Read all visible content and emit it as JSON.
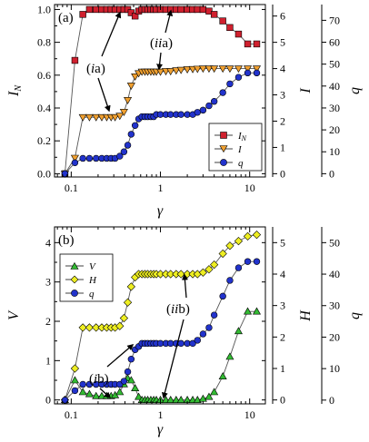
{
  "chart_data": [
    {
      "panel_label": "(a)",
      "type": "line",
      "x_scale": "log",
      "xlim": [
        0.065,
        15
      ],
      "xlabel": "γ",
      "xticks": [
        0.1,
        1,
        10
      ],
      "xtick_labels": [
        "0.1",
        "1",
        "10"
      ],
      "axes": [
        {
          "id": "left",
          "label": "I_N",
          "label_main": "I",
          "label_sub": "N",
          "ylim": [
            -0.02,
            1.03
          ],
          "ticks": [
            0,
            0.2,
            0.4,
            0.6,
            0.8,
            1.0
          ],
          "tick_labels": [
            "0.0",
            "0.2",
            "0.4",
            "0.6",
            "0.8",
            "1.0"
          ]
        },
        {
          "id": "right1",
          "label": "I",
          "ylim": [
            -0.125,
            6.438
          ],
          "ticks": [
            0,
            1,
            2,
            3,
            4,
            5,
            6
          ],
          "tick_labels": [
            "0",
            "1",
            "2",
            "3",
            "4",
            "5",
            "6"
          ]
        },
        {
          "id": "right2",
          "label": "q",
          "ylim": [
            -1.5,
            77.2
          ],
          "ticks": [
            0,
            10,
            20,
            30,
            40,
            50,
            60,
            70
          ],
          "tick_labels": [
            "0",
            "10",
            "20",
            "30",
            "40",
            "50",
            "60",
            "70"
          ]
        }
      ],
      "legend": {
        "position": "lower-right"
      },
      "series": [
        {
          "name": "I_N",
          "name_main": "I",
          "name_sub": "N",
          "axis": "left",
          "marker": "square",
          "color": "#d0202e",
          "x": [
            0.085,
            0.11,
            0.135,
            0.16,
            0.19,
            0.22,
            0.25,
            0.28,
            0.31,
            0.35,
            0.39,
            0.43,
            0.47,
            0.52,
            0.57,
            0.62,
            0.67,
            0.72,
            0.78,
            0.84,
            0.9,
            1.0,
            1.15,
            1.3,
            1.5,
            1.7,
            2.0,
            2.3,
            2.6,
            3.0,
            3.5,
            4.0,
            5.0,
            6.0,
            7.5,
            9.5,
            12.0
          ],
          "y": [
            0.0,
            0.69,
            0.97,
            1.0,
            1.0,
            1.0,
            1.0,
            1.0,
            1.0,
            1.0,
            1.0,
            1.0,
            0.98,
            0.96,
            0.99,
            1.0,
            1.0,
            1.0,
            1.0,
            1.0,
            1.0,
            1.0,
            1.0,
            1.0,
            1.0,
            1.0,
            1.0,
            1.0,
            1.0,
            1.0,
            0.99,
            0.97,
            0.93,
            0.89,
            0.85,
            0.79,
            0.79
          ]
        },
        {
          "name": "I",
          "axis": "right1",
          "marker": "triangle-down",
          "color": "#f0a030",
          "x": [
            0.085,
            0.11,
            0.135,
            0.16,
            0.19,
            0.22,
            0.25,
            0.28,
            0.31,
            0.35,
            0.39,
            0.43,
            0.47,
            0.52,
            0.57,
            0.62,
            0.67,
            0.72,
            0.78,
            0.84,
            0.9,
            1.0,
            1.15,
            1.3,
            1.5,
            1.7,
            2.0,
            2.3,
            2.6,
            3.0,
            3.5,
            4.0,
            5.0,
            6.0,
            7.5,
            9.5,
            12.0
          ],
          "y": [
            0.0,
            0.6,
            2.15,
            2.15,
            2.15,
            2.15,
            2.15,
            2.15,
            2.15,
            2.2,
            2.35,
            2.8,
            3.35,
            3.7,
            3.82,
            3.88,
            3.88,
            3.88,
            3.88,
            3.88,
            3.88,
            3.88,
            3.9,
            3.9,
            3.93,
            3.95,
            3.97,
            3.98,
            3.99,
            4.0,
            4.0,
            4.0,
            4.0,
            4.0,
            4.0,
            4.0,
            4.0
          ]
        },
        {
          "name": "q",
          "axis": "right2",
          "marker": "circle",
          "color": "#2233cc",
          "x": [
            0.085,
            0.11,
            0.135,
            0.16,
            0.19,
            0.22,
            0.25,
            0.28,
            0.31,
            0.35,
            0.39,
            0.43,
            0.47,
            0.52,
            0.57,
            0.62,
            0.67,
            0.72,
            0.78,
            0.84,
            0.9,
            1.0,
            1.15,
            1.3,
            1.5,
            1.7,
            2.0,
            2.3,
            2.6,
            3.0,
            3.5,
            4.0,
            5.0,
            6.0,
            7.5,
            9.5,
            12.0
          ],
          "y": [
            0,
            5,
            7,
            7,
            7,
            7,
            7,
            7,
            7,
            8,
            10,
            13,
            18,
            22,
            25,
            26,
            26,
            26,
            26,
            26,
            27,
            27,
            27,
            27,
            27,
            27,
            27,
            27,
            28,
            29,
            31,
            33,
            37,
            41,
            44,
            46,
            46
          ]
        }
      ],
      "annotations": [
        {
          "text": "(ia)",
          "italic": "i",
          "rest": "a"
        },
        {
          "text": "(iia)",
          "italic": "ii",
          "rest": "a"
        }
      ]
    },
    {
      "panel_label": "(b)",
      "type": "line",
      "x_scale": "log",
      "xlim": [
        0.065,
        15
      ],
      "xlabel": "γ",
      "xticks": [
        0.1,
        1,
        10
      ],
      "xtick_labels": [
        "0.1",
        "1",
        "10"
      ],
      "axes": [
        {
          "id": "left",
          "label": "V",
          "ylim": [
            -0.1,
            4.4
          ],
          "ticks": [
            0,
            1,
            2,
            3,
            4
          ],
          "tick_labels": [
            "0",
            "1",
            "2",
            "3",
            "4"
          ]
        },
        {
          "id": "right1",
          "label": "H",
          "ylim": [
            -0.125,
            5.5
          ],
          "ticks": [
            0,
            1,
            2,
            3,
            4,
            5
          ],
          "tick_labels": [
            "0",
            "1",
            "2",
            "3",
            "4",
            "5"
          ]
        },
        {
          "id": "right2",
          "label": "q",
          "ylim": [
            -1.2,
            55
          ],
          "ticks": [
            0,
            10,
            20,
            30,
            40,
            50
          ],
          "tick_labels": [
            "0",
            "10",
            "20",
            "30",
            "40",
            "50"
          ]
        }
      ],
      "legend": {
        "position": "top-left"
      },
      "series": [
        {
          "name": "V",
          "axis": "left",
          "marker": "triangle-up",
          "color": "#33bb33",
          "x": [
            0.085,
            0.11,
            0.135,
            0.16,
            0.19,
            0.22,
            0.25,
            0.28,
            0.31,
            0.35,
            0.39,
            0.43,
            0.47,
            0.52,
            0.57,
            0.62,
            0.67,
            0.72,
            0.78,
            0.84,
            0.9,
            1.0,
            1.15,
            1.3,
            1.5,
            1.7,
            2.0,
            2.3,
            2.6,
            3.0,
            3.5,
            4.0,
            5.0,
            6.0,
            7.5,
            9.5,
            12.0
          ],
          "y": [
            0.0,
            0.5,
            0.2,
            0.15,
            0.1,
            0.1,
            0.1,
            0.1,
            0.12,
            0.2,
            0.4,
            0.55,
            0.5,
            0.3,
            0.08,
            0.0,
            0.0,
            0.0,
            0.0,
            0.0,
            0.0,
            0.0,
            0.0,
            0.0,
            0.0,
            0.0,
            0.0,
            0.0,
            0.0,
            0.03,
            0.08,
            0.2,
            0.6,
            1.1,
            1.75,
            2.25,
            2.25
          ]
        },
        {
          "name": "H",
          "axis": "right1",
          "marker": "diamond",
          "color": "#eeee22",
          "x": [
            0.085,
            0.11,
            0.135,
            0.16,
            0.19,
            0.22,
            0.25,
            0.28,
            0.31,
            0.35,
            0.39,
            0.43,
            0.47,
            0.52,
            0.57,
            0.62,
            0.67,
            0.72,
            0.78,
            0.84,
            0.9,
            1.0,
            1.15,
            1.3,
            1.5,
            1.7,
            2.0,
            2.3,
            2.6,
            3.0,
            3.5,
            4.0,
            5.0,
            6.0,
            7.5,
            9.5,
            12.0
          ],
          "y": [
            0.0,
            1.0,
            2.3,
            2.3,
            2.3,
            2.3,
            2.3,
            2.3,
            2.3,
            2.35,
            2.6,
            3.1,
            3.6,
            3.9,
            4.0,
            4.0,
            4.0,
            4.0,
            4.0,
            4.0,
            4.0,
            4.0,
            4.0,
            4.0,
            4.0,
            4.0,
            4.0,
            4.0,
            4.0,
            4.05,
            4.15,
            4.3,
            4.65,
            4.9,
            5.05,
            5.2,
            5.25
          ]
        },
        {
          "name": "q",
          "axis": "right2",
          "marker": "circle",
          "color": "#2233cc",
          "x": [
            0.085,
            0.11,
            0.135,
            0.16,
            0.19,
            0.22,
            0.25,
            0.28,
            0.31,
            0.35,
            0.39,
            0.43,
            0.47,
            0.52,
            0.57,
            0.62,
            0.67,
            0.72,
            0.78,
            0.84,
            0.9,
            1.0,
            1.15,
            1.3,
            1.5,
            1.7,
            2.0,
            2.3,
            2.6,
            3.0,
            3.5,
            4.0,
            5.0,
            6.0,
            7.5,
            9.5,
            12.0
          ],
          "y": [
            0,
            3,
            5,
            5,
            5,
            5,
            5,
            5,
            5,
            5,
            6,
            9,
            13,
            16,
            17,
            18,
            18,
            18,
            18,
            18,
            18,
            18,
            18,
            18,
            18,
            18,
            18,
            18,
            19,
            21,
            23,
            27,
            33,
            38,
            42,
            44,
            44
          ]
        }
      ],
      "annotations": [
        {
          "text": "(ib)",
          "italic": "i",
          "rest": "b"
        },
        {
          "text": "(iib)",
          "italic": "ii",
          "rest": "b"
        }
      ]
    }
  ]
}
